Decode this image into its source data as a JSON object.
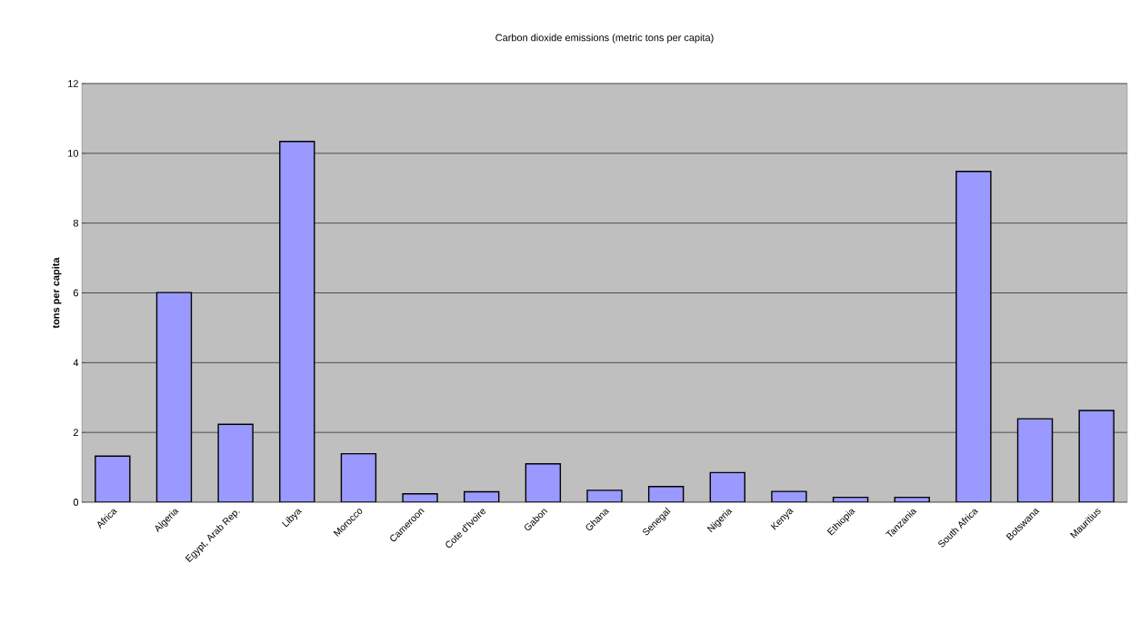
{
  "chart_data": {
    "type": "bar",
    "title": "Carbon dioxide emissions (metric tons per capita)",
    "ylabel": "**tons per capita**",
    "categories": [
      "Africa",
      "Algeria",
      "Egypt, Arab Rep.",
      "Libya",
      "Morocco",
      "Cameroon",
      "Cote d'Ivoire",
      "Gabon",
      "Ghana",
      "Senegal",
      "Nigeria",
      "Kenya",
      "Ethiopia",
      "Tanzania",
      "South Africa",
      "Botswana",
      "Mauritius"
    ],
    "values": [
      1.32,
      6.01,
      2.23,
      10.34,
      1.39,
      0.24,
      0.3,
      1.1,
      0.34,
      0.45,
      0.85,
      0.31,
      0.14,
      0.14,
      9.48,
      2.39,
      2.63
    ],
    "color": "#9999ff",
    "ylim": [
      0,
      12
    ],
    "yticks": [
      0,
      2,
      4,
      6,
      8,
      10,
      12
    ],
    "grid": "y"
  }
}
